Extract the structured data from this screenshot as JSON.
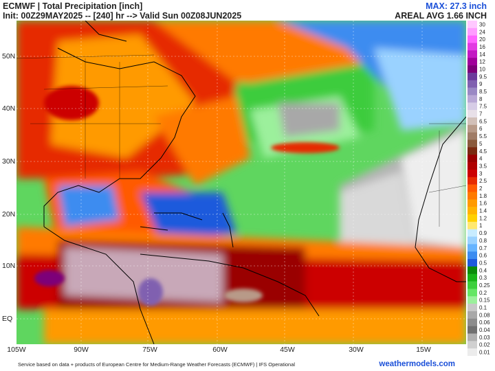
{
  "header": {
    "title": "ECMWF | Total Precipitation [inch]",
    "init_line": "Init: 00Z29MAY2025 -- [240] hr --> Valid Sun 00Z08JUN2025",
    "max_label": "MAX: 27.3 inch",
    "areal_avg": "AREAL AVG 1.66 INCH"
  },
  "map": {
    "lon_labels": [
      "105W",
      "90W",
      "75W",
      "60W",
      "45W",
      "30W",
      "15W"
    ],
    "lat_labels": [
      "50N",
      "40N",
      "30N",
      "20N",
      "10N",
      "EQ"
    ]
  },
  "legend": {
    "values": [
      "30",
      "24",
      "20",
      "16",
      "14",
      "12",
      "10",
      "9.5",
      "9",
      "8.5",
      "8",
      "7.5",
      "7",
      "6.5",
      "6",
      "5.5",
      "5",
      "4.5",
      "4",
      "3.5",
      "3",
      "2.5",
      "2",
      "1.8",
      "1.6",
      "1.4",
      "1.2",
      "1",
      "0.9",
      "0.8",
      "0.7",
      "0.6",
      "0.5",
      "0.4",
      "0.3",
      "0.25",
      "0.2",
      "0.15",
      "0.1",
      "0.08",
      "0.06",
      "0.04",
      "0.03",
      "0.02",
      "0.01"
    ],
    "colors": [
      "#ffc8ff",
      "#ff9cff",
      "#ff63ff",
      "#e23ae2",
      "#c318c3",
      "#a0009a",
      "#7d0079",
      "#6b3a9b",
      "#8060b0",
      "#9a88c4",
      "#b9a8d6",
      "#d6cce6",
      "#e8e0e8",
      "#d2c0b8",
      "#b89a88",
      "#a07c66",
      "#8a5a3c",
      "#7a2a10",
      "#9a0000",
      "#b00000",
      "#cc0000",
      "#e62a00",
      "#ff5a00",
      "#ff7a00",
      "#ff9a00",
      "#ffb300",
      "#ffd000",
      "#ffe870",
      "#c8ecff",
      "#9ad2ff",
      "#66b4ff",
      "#3c8cf0",
      "#1e5adc",
      "#0a8c0a",
      "#18b418",
      "#3ccf3c",
      "#64e664",
      "#9cf09c",
      "#c8c8c8",
      "#a8a8a8",
      "#8c8c8c",
      "#707070",
      "#b0b0b0",
      "#d0d0d0",
      "#ececec"
    ]
  },
  "footer": {
    "source": "Service based on data + products of European Centre for Medium-Range Weather Forecasts (ECMWF) | IFS Operational",
    "credit": "weathermodels.com"
  }
}
